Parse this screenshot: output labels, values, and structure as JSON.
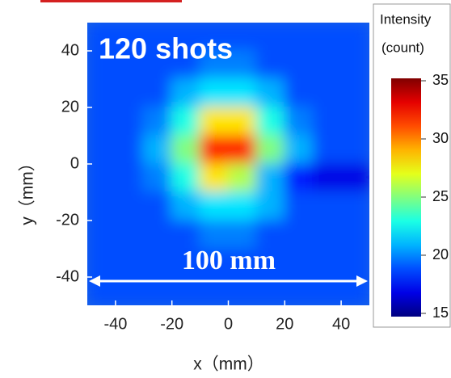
{
  "chart_data": {
    "type": "heatmap",
    "title": "120 shots",
    "annotation": "100 mm",
    "x_label": "x（mm）",
    "y_label": "y（mm）",
    "colorbar_title": "Intensity",
    "colorbar_unit": "(count)",
    "colormap": "jet",
    "x": [
      -45,
      -35,
      -25,
      -15,
      -5,
      5,
      15,
      25,
      35,
      45
    ],
    "y": [
      45,
      35,
      25,
      15,
      5,
      -5,
      -15,
      -25,
      -35,
      -45
    ],
    "z": [
      [
        19,
        19,
        19,
        19,
        19,
        19,
        19,
        19,
        19,
        19
      ],
      [
        19,
        19,
        19,
        19,
        20,
        20,
        19,
        19,
        19,
        19
      ],
      [
        19,
        19,
        19,
        21,
        22,
        22,
        21,
        19,
        19,
        19
      ],
      [
        19,
        19,
        20,
        23,
        28,
        28,
        23,
        20,
        19,
        19
      ],
      [
        19,
        19,
        21,
        25,
        32,
        32,
        25,
        21,
        19,
        19
      ],
      [
        19,
        19,
        20,
        23,
        28,
        26,
        21,
        18,
        17,
        17
      ],
      [
        19,
        19,
        19,
        21,
        22,
        22,
        21,
        19,
        19,
        19
      ],
      [
        19,
        19,
        19,
        19,
        20,
        20,
        19,
        19,
        19,
        19
      ],
      [
        19,
        19,
        19,
        19,
        19,
        19,
        19,
        19,
        19,
        19
      ],
      [
        19,
        19,
        19,
        19,
        19,
        19,
        19,
        19,
        19,
        19
      ]
    ],
    "xlim": [
      -50,
      50
    ],
    "ylim": [
      -50,
      50
    ],
    "xticks": [
      -40,
      -20,
      0,
      20,
      40
    ],
    "yticks": [
      40,
      20,
      0,
      -20,
      -40
    ],
    "clim": [
      15,
      35
    ],
    "cticks": [
      15,
      20,
      25,
      30,
      35
    ]
  }
}
